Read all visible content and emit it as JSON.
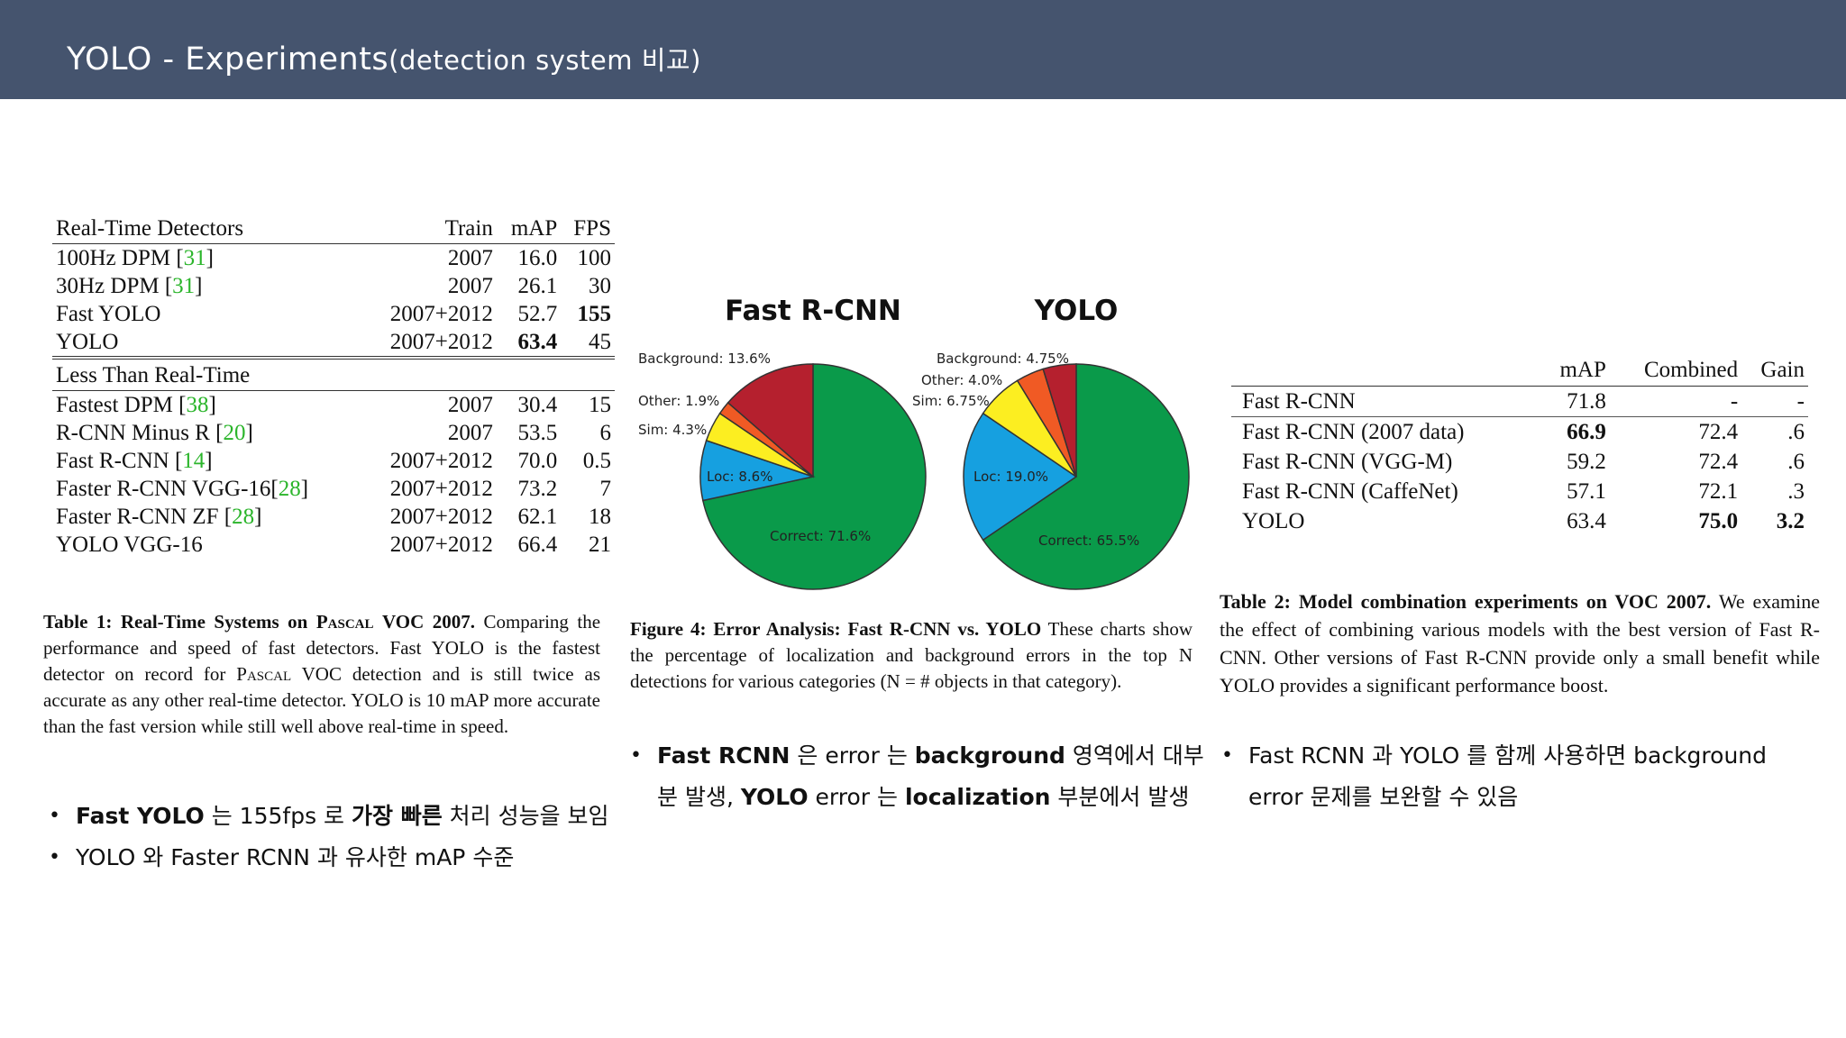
{
  "slide": {
    "title_main": "YOLO - Experiments",
    "title_sub": "(detection system 비교)"
  },
  "table1": {
    "columns": [
      "Real-Time Detectors",
      "Train",
      "mAP",
      "FPS"
    ],
    "realtime_rows": [
      {
        "name": "100Hz DPM [",
        "ref": "31",
        "close": "]",
        "train": "2007",
        "map": "16.0",
        "fps": "100"
      },
      {
        "name": "30Hz DPM [",
        "ref": "31",
        "close": "]",
        "train": "2007",
        "map": "26.1",
        "fps": "30"
      },
      {
        "name": "Fast YOLO",
        "ref": "",
        "close": "",
        "train": "2007+2012",
        "map": "52.7",
        "fps": "155"
      },
      {
        "name": "YOLO",
        "ref": "",
        "close": "",
        "train": "2007+2012",
        "map": "63.4",
        "fps": "45"
      }
    ],
    "section2_label": "Less Than Real-Time",
    "slow_rows": [
      {
        "name": "Fastest DPM [",
        "ref": "38",
        "close": "]",
        "train": "2007",
        "map": "30.4",
        "fps": "15"
      },
      {
        "name": "R-CNN Minus R [",
        "ref": "20",
        "close": "]",
        "train": "2007",
        "map": "53.5",
        "fps": "6"
      },
      {
        "name": "Fast R-CNN [",
        "ref": "14",
        "close": "]",
        "train": "2007+2012",
        "map": "70.0",
        "fps": "0.5"
      },
      {
        "name": "Faster R-CNN VGG-16[",
        "ref": "28",
        "close": "]",
        "train": "2007+2012",
        "map": "73.2",
        "fps": "7"
      },
      {
        "name": "Faster R-CNN ZF [",
        "ref": "28",
        "close": "]",
        "train": "2007+2012",
        "map": "62.1",
        "fps": "18"
      },
      {
        "name": "YOLO VGG-16",
        "ref": "",
        "close": "",
        "train": "2007+2012",
        "map": "66.4",
        "fps": "21"
      }
    ],
    "caption_label": "Table 1:",
    "caption_bold_a": "Real-Time Systems on",
    "caption_bold_sc": "Pascal",
    "caption_bold_b": "VOC 2007.",
    "caption_text_a": "Comparing the performance and speed of fast detectors.  Fast YOLO is the fastest detector on record for",
    "caption_text_sc": "Pascal",
    "caption_text_b": "VOC detection and is still twice as accurate as any other real-time detector.  YOLO is 10 mAP more accurate than the fast version while still well above real-time in speed."
  },
  "figure4": {
    "caption_label": "Figure 4:",
    "caption_bold": "Error Analysis: Fast R-CNN vs. YOLO",
    "caption_text": "These charts show the percentage of localization and background errors in the top N detections for various categories (N = # objects in that category)."
  },
  "chart_data": [
    {
      "type": "pie",
      "title": "Fast R-CNN",
      "slices": [
        {
          "label": "Correct: 71.6%",
          "value": 71.6,
          "color": "#0a9a4a"
        },
        {
          "label": "Loc: 8.6%",
          "value": 8.6,
          "color": "#16a0e0"
        },
        {
          "label": "Sim: 4.3%",
          "value": 4.3,
          "color": "#fcee21"
        },
        {
          "label": "Other: 1.9%",
          "value": 1.9,
          "color": "#f05a24"
        },
        {
          "label": "Background: 13.6%",
          "value": 13.6,
          "color": "#b5202e"
        }
      ]
    },
    {
      "type": "pie",
      "title": "YOLO",
      "slices": [
        {
          "label": "Correct: 65.5%",
          "value": 65.5,
          "color": "#0a9a4a"
        },
        {
          "label": "Loc: 19.0%",
          "value": 19.0,
          "color": "#16a0e0"
        },
        {
          "label": "Sim: 6.75%",
          "value": 6.75,
          "color": "#fcee21"
        },
        {
          "label": "Other: 4.0%",
          "value": 4.0,
          "color": "#f05a24"
        },
        {
          "label": "Background: 4.75%",
          "value": 4.75,
          "color": "#b5202e"
        }
      ]
    }
  ],
  "table2": {
    "columns": [
      "",
      "mAP",
      "Combined",
      "Gain"
    ],
    "rows": [
      {
        "name": "Fast R-CNN",
        "map": "71.8",
        "combined": "-",
        "gain": "-"
      },
      {
        "name": "Fast R-CNN (2007 data)",
        "map": "66.9",
        "combined": "72.4",
        "gain": ".6"
      },
      {
        "name": "Fast R-CNN (VGG-M)",
        "map": "59.2",
        "combined": "72.4",
        "gain": ".6"
      },
      {
        "name": "Fast R-CNN (CaffeNet)",
        "map": "57.1",
        "combined": "72.1",
        "gain": ".3"
      },
      {
        "name": "YOLO",
        "map": "63.4",
        "combined": "75.0",
        "gain": "3.2"
      }
    ],
    "caption_label": "Table 2:",
    "caption_bold": "Model combination experiments on VOC 2007.",
    "caption_text": "We examine the effect of combining various models with the best version of Fast R-CNN. Other versions of Fast R-CNN provide only a small benefit while YOLO provides a significant performance boost."
  },
  "notes": {
    "left_1_bold": "Fast YOLO",
    "left_1_a": " 는 155fps 로 ",
    "left_1_bold2": "가장 빠른",
    "left_1_b": " 처리 성능을 보임",
    "left_2": "YOLO 와 Faster RCNN 과 유사한 mAP 수준",
    "mid_bold1": "Fast RCNN",
    "mid_a": " 은 error 는 ",
    "mid_bold2": "background",
    "mid_b": " 영역에서 대부분 발생, ",
    "mid_bold3": "YOLO",
    "mid_c": " error 는 ",
    "mid_bold4": "localization",
    "mid_d": " 부분에서 발생",
    "right_1": "Fast RCNN 과  YOLO 를 함께 사용하면 background error 문제를 보완할 수 있음"
  }
}
